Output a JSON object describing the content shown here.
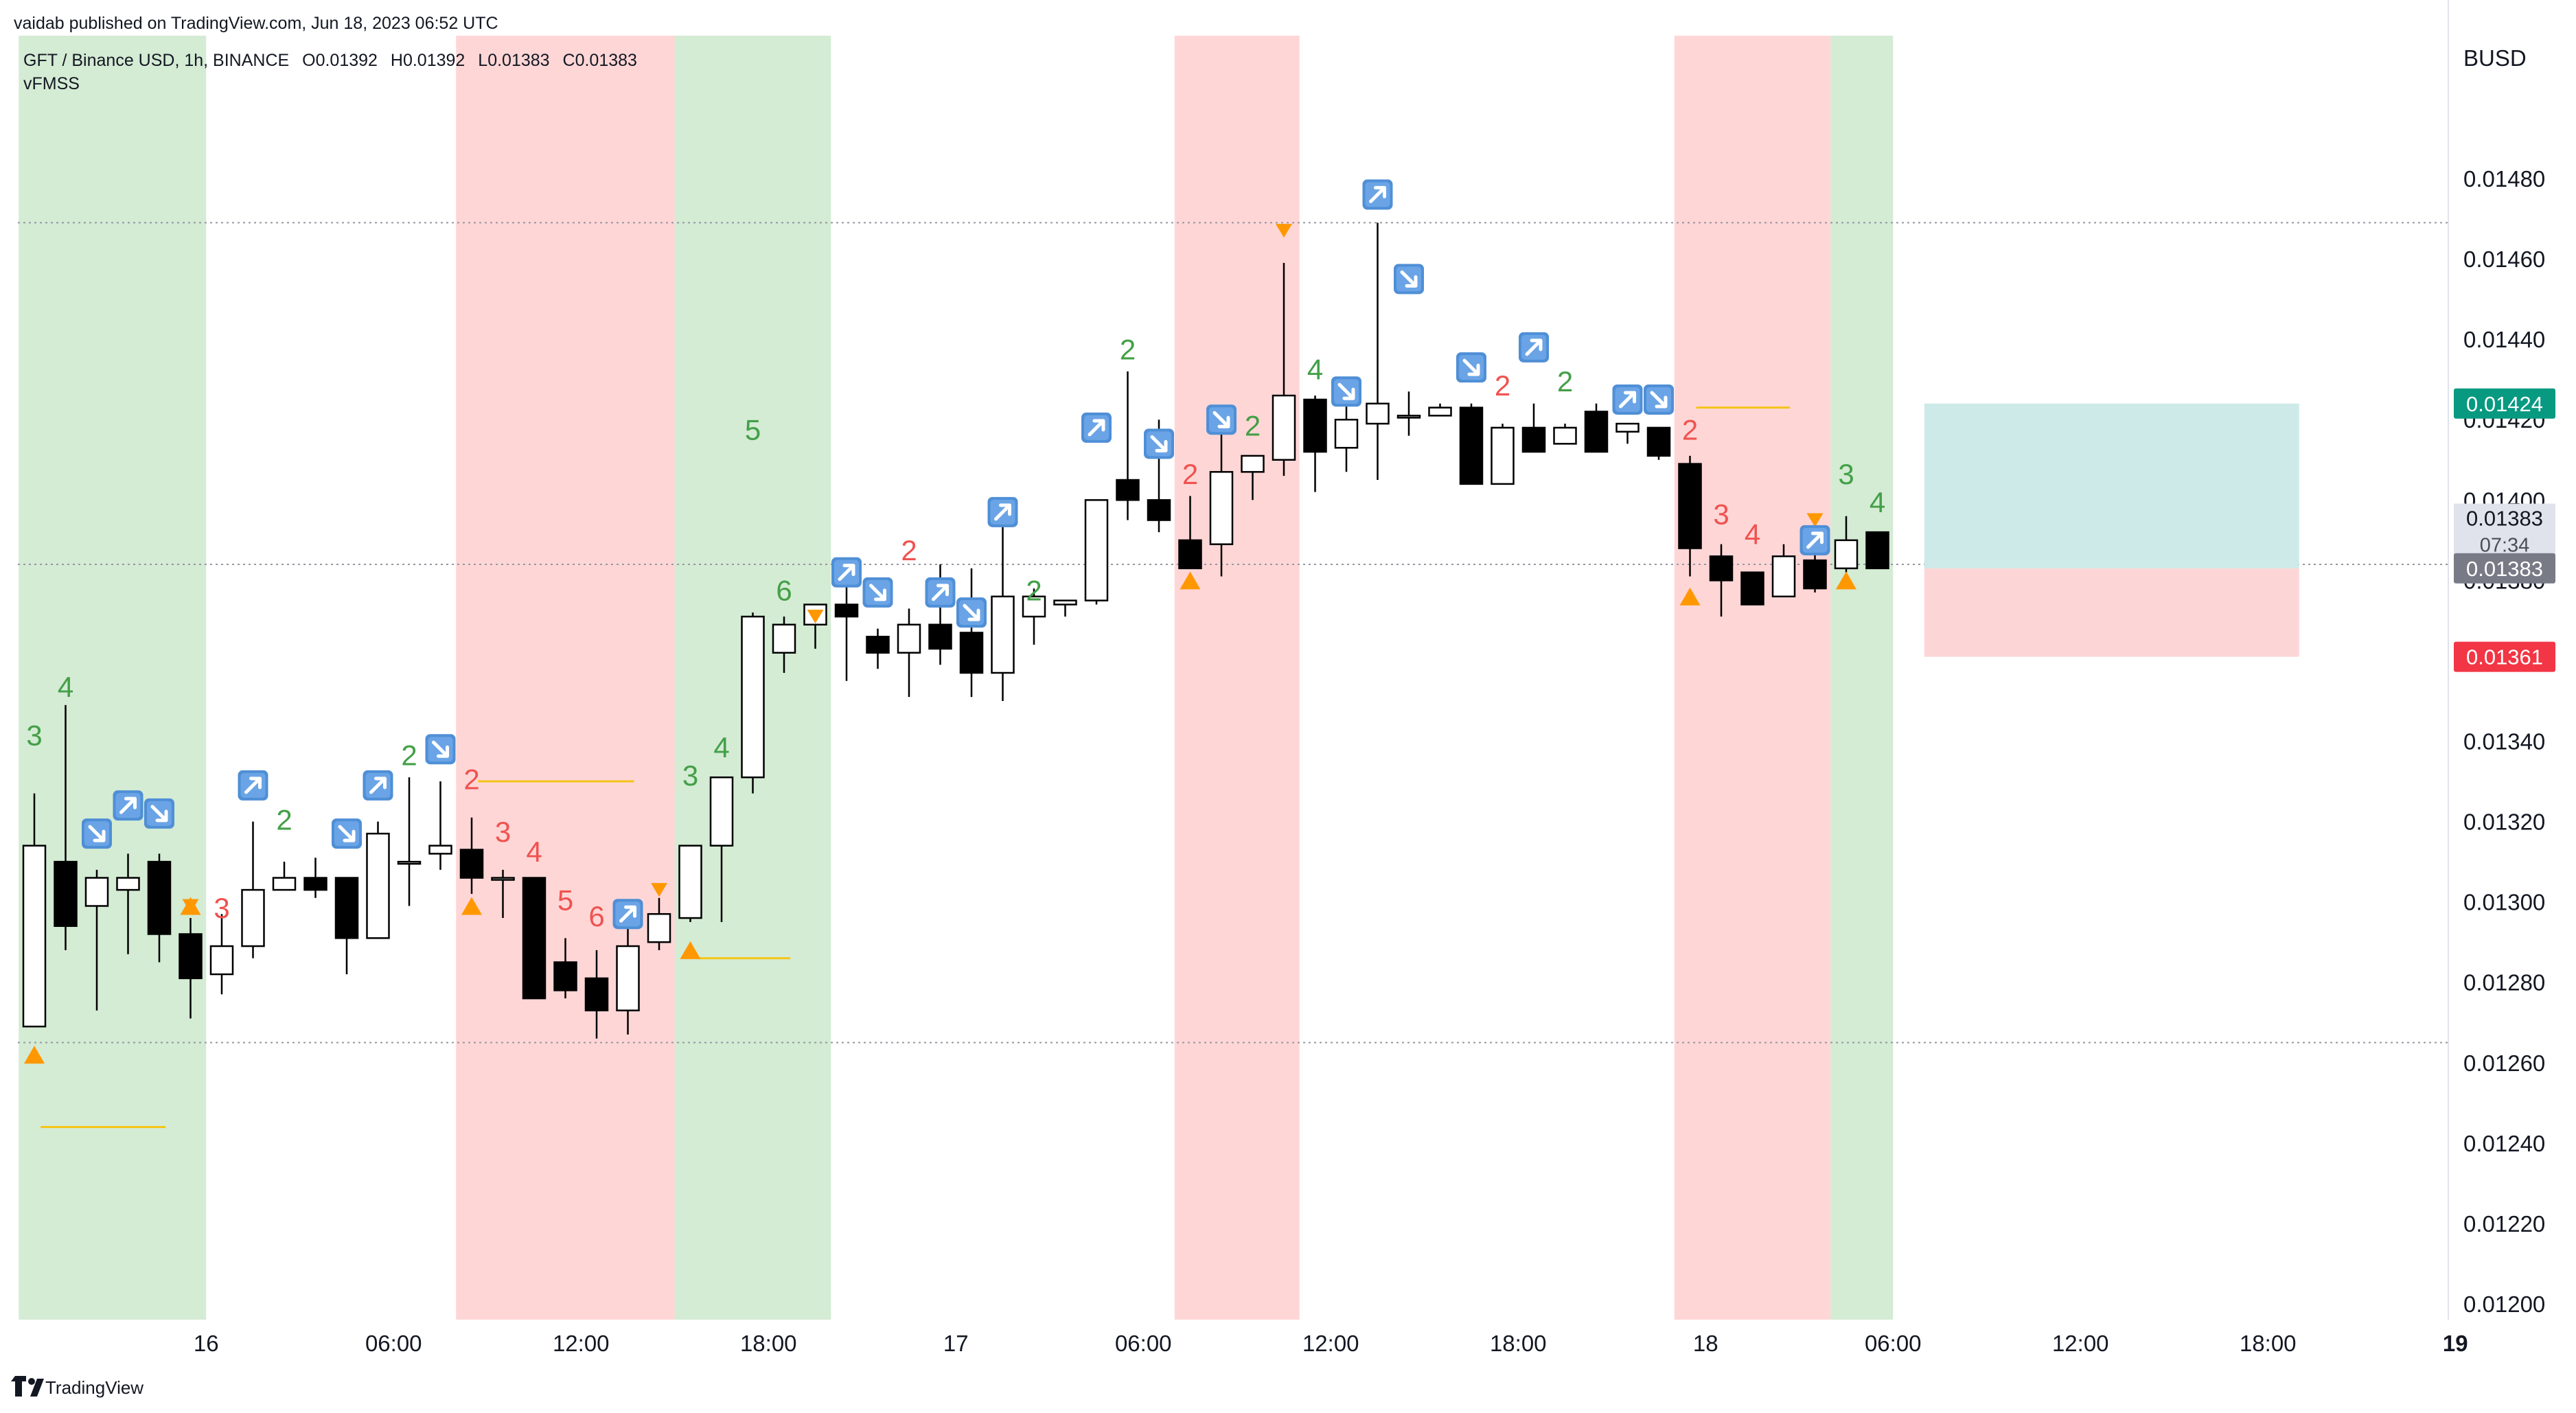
{
  "header": {
    "published": "vaidab published on TradingView.com, Jun 18, 2023 06:52 UTC"
  },
  "legend": {
    "symbol": "GFT / Binance USD, 1h, BINANCE",
    "open": "O0.01392",
    "high": "H0.01392",
    "low": "L0.01383",
    "close": "C0.01383",
    "indicator": "vFMSS"
  },
  "footer": {
    "brand": "TradingView"
  },
  "colors": {
    "up_fill": "#ffffff",
    "down_fill": "#000000",
    "candle_border": "#000000",
    "green_zone": "#d4ebd4",
    "red_zone": "#ffd6d6",
    "count_green": "#43a047",
    "count_red": "#ef5350",
    "triangle": "#ff9800",
    "level_line": "#f5c518",
    "target_box": "#cdeae8",
    "stop_box": "#fcd6d6",
    "price_green_tag": "#089981",
    "price_red_tag": "#f23645",
    "price_gray_tag": "#787b86"
  },
  "chart_data": {
    "type": "candlestick",
    "title": "GFT / Binance USD, 1h, BINANCE",
    "ylabel": "BUSD",
    "ylim": [
      0.01193,
      0.01496
    ],
    "y_ticks": [
      "0.01480",
      "0.01460",
      "0.01440",
      "0.01420",
      "0.01400",
      "0.01380",
      "0.01360",
      "0.01340",
      "0.01320",
      "0.01300",
      "0.01280",
      "0.01260",
      "0.01240",
      "0.01220",
      "0.01200"
    ],
    "x_ticks": [
      {
        "label": "16",
        "index": 5.5
      },
      {
        "label": "06:00",
        "index": 11.5
      },
      {
        "label": "12:00",
        "index": 17.5
      },
      {
        "label": "18:00",
        "index": 23.5
      },
      {
        "label": "17",
        "index": 29.5
      },
      {
        "label": "06:00",
        "index": 35.5
      },
      {
        "label": "12:00",
        "index": 41.5
      },
      {
        "label": "18:00",
        "index": 47.5
      },
      {
        "label": "18",
        "index": 53.5
      },
      {
        "label": "06:00",
        "index": 59.5
      },
      {
        "label": "12:00",
        "index": 65.5
      },
      {
        "label": "18:00",
        "index": 71.5
      },
      {
        "label": "19",
        "index": 77.5
      }
    ],
    "candles": [
      {
        "o": 0.01269,
        "h": 0.01327,
        "l": 0.01269,
        "c": 0.01314
      },
      {
        "o": 0.0131,
        "h": 0.01349,
        "l": 0.01288,
        "c": 0.01294
      },
      {
        "o": 0.01299,
        "h": 0.01308,
        "l": 0.01273,
        "c": 0.01306
      },
      {
        "o": 0.01303,
        "h": 0.01312,
        "l": 0.01287,
        "c": 0.01306
      },
      {
        "o": 0.0131,
        "h": 0.01312,
        "l": 0.01285,
        "c": 0.01292
      },
      {
        "o": 0.01292,
        "h": 0.01296,
        "l": 0.01271,
        "c": 0.01281
      },
      {
        "o": 0.01282,
        "h": 0.01297,
        "l": 0.01277,
        "c": 0.01289
      },
      {
        "o": 0.01289,
        "h": 0.0132,
        "l": 0.01286,
        "c": 0.01303
      },
      {
        "o": 0.01303,
        "h": 0.0131,
        "l": 0.01303,
        "c": 0.01306
      },
      {
        "o": 0.01306,
        "h": 0.01311,
        "l": 0.01301,
        "c": 0.01303
      },
      {
        "o": 0.01306,
        "h": 0.01306,
        "l": 0.01282,
        "c": 0.01291
      },
      {
        "o": 0.01291,
        "h": 0.0132,
        "l": 0.01291,
        "c": 0.01317
      },
      {
        "o": 0.0131,
        "h": 0.01331,
        "l": 0.01299,
        "c": 0.0131
      },
      {
        "o": 0.01312,
        "h": 0.0133,
        "l": 0.01308,
        "c": 0.01314
      },
      {
        "o": 0.01313,
        "h": 0.01321,
        "l": 0.01302,
        "c": 0.01306
      },
      {
        "o": 0.01306,
        "h": 0.01308,
        "l": 0.01296,
        "c": 0.01306
      },
      {
        "o": 0.01306,
        "h": 0.01306,
        "l": 0.01276,
        "c": 0.01276
      },
      {
        "o": 0.01285,
        "h": 0.01291,
        "l": 0.01276,
        "c": 0.01278
      },
      {
        "o": 0.01281,
        "h": 0.01288,
        "l": 0.01266,
        "c": 0.01273
      },
      {
        "o": 0.01273,
        "h": 0.01296,
        "l": 0.01267,
        "c": 0.01289
      },
      {
        "o": 0.0129,
        "h": 0.01301,
        "l": 0.01288,
        "c": 0.01297
      },
      {
        "o": 0.01296,
        "h": 0.01313,
        "l": 0.01295,
        "c": 0.01314
      },
      {
        "o": 0.01314,
        "h": 0.01329,
        "l": 0.01295,
        "c": 0.01331
      },
      {
        "o": 0.01331,
        "h": 0.01372,
        "l": 0.01327,
        "c": 0.01371
      },
      {
        "o": 0.01362,
        "h": 0.01371,
        "l": 0.01357,
        "c": 0.01369
      },
      {
        "o": 0.01369,
        "h": 0.01373,
        "l": 0.01363,
        "c": 0.01374
      },
      {
        "o": 0.01374,
        "h": 0.01382,
        "l": 0.01355,
        "c": 0.01371
      },
      {
        "o": 0.01366,
        "h": 0.01368,
        "l": 0.01358,
        "c": 0.01362
      },
      {
        "o": 0.01362,
        "h": 0.01373,
        "l": 0.01351,
        "c": 0.01369
      },
      {
        "o": 0.01369,
        "h": 0.01384,
        "l": 0.01359,
        "c": 0.01363
      },
      {
        "o": 0.01367,
        "h": 0.01383,
        "l": 0.01351,
        "c": 0.01357
      },
      {
        "o": 0.01357,
        "h": 0.01395,
        "l": 0.0135,
        "c": 0.01376
      },
      {
        "o": 0.01371,
        "h": 0.01378,
        "l": 0.01364,
        "c": 0.01376
      },
      {
        "o": 0.01374,
        "h": 0.01375,
        "l": 0.01371,
        "c": 0.01375
      },
      {
        "o": 0.01375,
        "h": 0.014,
        "l": 0.01374,
        "c": 0.014
      },
      {
        "o": 0.01405,
        "h": 0.01432,
        "l": 0.01395,
        "c": 0.014
      },
      {
        "o": 0.014,
        "h": 0.0142,
        "l": 0.01392,
        "c": 0.01395
      },
      {
        "o": 0.0139,
        "h": 0.01401,
        "l": 0.01383,
        "c": 0.01383
      },
      {
        "o": 0.01389,
        "h": 0.01417,
        "l": 0.01381,
        "c": 0.01407
      },
      {
        "o": 0.01407,
        "h": 0.01408,
        "l": 0.014,
        "c": 0.01411
      },
      {
        "o": 0.0141,
        "h": 0.01459,
        "l": 0.01406,
        "c": 0.01426
      },
      {
        "o": 0.01425,
        "h": 0.01426,
        "l": 0.01402,
        "c": 0.01412
      },
      {
        "o": 0.01413,
        "h": 0.01427,
        "l": 0.01407,
        "c": 0.0142
      },
      {
        "o": 0.01419,
        "h": 0.01469,
        "l": 0.01405,
        "c": 0.01424
      },
      {
        "o": 0.01421,
        "h": 0.01427,
        "l": 0.01416,
        "c": 0.01421
      },
      {
        "o": 0.01421,
        "h": 0.01424,
        "l": 0.01421,
        "c": 0.01423
      },
      {
        "o": 0.01423,
        "h": 0.01424,
        "l": 0.01404,
        "c": 0.01404
      },
      {
        "o": 0.01404,
        "h": 0.01419,
        "l": 0.01404,
        "c": 0.01418
      },
      {
        "o": 0.01418,
        "h": 0.01424,
        "l": 0.01412,
        "c": 0.01412
      },
      {
        "o": 0.01414,
        "h": 0.01419,
        "l": 0.01414,
        "c": 0.01418
      },
      {
        "o": 0.01422,
        "h": 0.01424,
        "l": 0.01412,
        "c": 0.01412
      },
      {
        "o": 0.01417,
        "h": 0.01419,
        "l": 0.01414,
        "c": 0.01419
      },
      {
        "o": 0.01418,
        "h": 0.01418,
        "l": 0.0141,
        "c": 0.01411
      },
      {
        "o": 0.01409,
        "h": 0.01411,
        "l": 0.01381,
        "c": 0.01388
      },
      {
        "o": 0.01386,
        "h": 0.01389,
        "l": 0.01371,
        "c": 0.0138
      },
      {
        "o": 0.01382,
        "h": 0.01382,
        "l": 0.01374,
        "c": 0.01374
      },
      {
        "o": 0.01376,
        "h": 0.01389,
        "l": 0.01376,
        "c": 0.01386
      },
      {
        "o": 0.01385,
        "h": 0.01388,
        "l": 0.01377,
        "c": 0.01378
      },
      {
        "o": 0.01383,
        "h": 0.01396,
        "l": 0.01382,
        "c": 0.0139
      },
      {
        "o": 0.01392,
        "h": 0.01392,
        "l": 0.01383,
        "c": 0.01383
      }
    ],
    "shaded_zones": [
      {
        "type": "green",
        "from": -0.5,
        "to": 5.5
      },
      {
        "type": "red",
        "from": 13.5,
        "to": 20.5
      },
      {
        "type": "green",
        "from": 20.5,
        "to": 25.5
      },
      {
        "type": "red",
        "from": 36.5,
        "to": 40.5
      },
      {
        "type": "red",
        "from": 52.5,
        "to": 57.5
      },
      {
        "type": "green",
        "from": 57.5,
        "to": 59.5
      }
    ],
    "count_labels": [
      {
        "i": 0,
        "text": "3",
        "color": "green",
        "price": 0.01339
      },
      {
        "i": 1,
        "text": "4",
        "color": "green",
        "price": 0.01351
      },
      {
        "i": 6,
        "text": "3",
        "color": "red",
        "price": 0.01296
      },
      {
        "i": 8,
        "text": "2",
        "color": "green",
        "price": 0.01318
      },
      {
        "i": 12,
        "text": "2",
        "color": "green",
        "price": 0.01334
      },
      {
        "i": 14,
        "text": "2",
        "color": "red",
        "price": 0.01328
      },
      {
        "i": 15,
        "text": "3",
        "color": "red",
        "price": 0.01315
      },
      {
        "i": 16,
        "text": "4",
        "color": "red",
        "price": 0.0131
      },
      {
        "i": 17,
        "text": "5",
        "color": "red",
        "price": 0.01298
      },
      {
        "i": 18,
        "text": "6",
        "color": "red",
        "price": 0.01294
      },
      {
        "i": 21,
        "text": "3",
        "color": "green",
        "price": 0.01329
      },
      {
        "i": 22,
        "text": "4",
        "color": "green",
        "price": 0.01336
      },
      {
        "i": 23,
        "text": "5",
        "color": "green",
        "price": 0.01415
      },
      {
        "i": 24,
        "text": "6",
        "color": "green",
        "price": 0.01375
      },
      {
        "i": 28,
        "text": "2",
        "color": "red",
        "price": 0.01385
      },
      {
        "i": 32,
        "text": "2",
        "color": "green",
        "price": 0.01375
      },
      {
        "i": 35,
        "text": "2",
        "color": "green",
        "price": 0.01435
      },
      {
        "i": 37,
        "text": "2",
        "color": "red",
        "price": 0.01404
      },
      {
        "i": 39,
        "text": "2",
        "color": "green",
        "price": 0.01416
      },
      {
        "i": 41,
        "text": "4",
        "color": "green",
        "price": 0.0143
      },
      {
        "i": 47,
        "text": "2",
        "color": "red",
        "price": 0.01426
      },
      {
        "i": 49,
        "text": "2",
        "color": "green",
        "price": 0.01427
      },
      {
        "i": 53,
        "text": "2",
        "color": "red",
        "price": 0.01415
      },
      {
        "i": 54,
        "text": "3",
        "color": "red",
        "price": 0.01394
      },
      {
        "i": 55,
        "text": "4",
        "color": "red",
        "price": 0.01389
      },
      {
        "i": 58,
        "text": "3",
        "color": "green",
        "price": 0.01404
      },
      {
        "i": 59,
        "text": "4",
        "color": "green",
        "price": 0.01397
      }
    ],
    "arrow_icons": [
      {
        "i": 2,
        "dir": "down",
        "price": 0.01317
      },
      {
        "i": 3,
        "dir": "up",
        "price": 0.01324
      },
      {
        "i": 4,
        "dir": "down",
        "price": 0.01322
      },
      {
        "i": 7,
        "dir": "up",
        "price": 0.01329
      },
      {
        "i": 10,
        "dir": "down",
        "price": 0.01317
      },
      {
        "i": 11,
        "dir": "up",
        "price": 0.01329
      },
      {
        "i": 13,
        "dir": "down",
        "price": 0.01338
      },
      {
        "i": 19,
        "dir": "up",
        "price": 0.01297
      },
      {
        "i": 26,
        "dir": "up",
        "price": 0.01382
      },
      {
        "i": 27,
        "dir": "down",
        "price": 0.01377
      },
      {
        "i": 29,
        "dir": "up",
        "price": 0.01377
      },
      {
        "i": 30,
        "dir": "down",
        "price": 0.01372
      },
      {
        "i": 31,
        "dir": "up",
        "price": 0.01397
      },
      {
        "i": 34,
        "dir": "up",
        "price": 0.01418
      },
      {
        "i": 36,
        "dir": "down",
        "price": 0.01414
      },
      {
        "i": 38,
        "dir": "down",
        "price": 0.0142
      },
      {
        "i": 42,
        "dir": "down",
        "price": 0.01427
      },
      {
        "i": 43,
        "dir": "up",
        "price": 0.01476
      },
      {
        "i": 44,
        "dir": "down",
        "price": 0.01455
      },
      {
        "i": 46,
        "dir": "down",
        "price": 0.01433
      },
      {
        "i": 48,
        "dir": "up",
        "price": 0.01438
      },
      {
        "i": 51,
        "dir": "up",
        "price": 0.01425
      },
      {
        "i": 52,
        "dir": "down",
        "price": 0.01425
      },
      {
        "i": 57,
        "dir": "up",
        "price": 0.0139
      }
    ],
    "triangles": [
      {
        "i": 0,
        "price": 0.01262
      },
      {
        "i": 5,
        "price": 0.01299
      },
      {
        "i": 14,
        "price": 0.01299
      },
      {
        "i": 21,
        "price": 0.01288
      },
      {
        "i": 37,
        "price": 0.0138
      },
      {
        "i": 53,
        "price": 0.01376
      },
      {
        "i": 58,
        "price": 0.0138
      }
    ],
    "small_markers": [
      {
        "i": 5,
        "price": 0.01299
      },
      {
        "i": 20,
        "price": 0.01303
      },
      {
        "i": 25,
        "price": 0.01371
      },
      {
        "i": 40,
        "price": 0.01467
      },
      {
        "i": 57,
        "price": 0.01395
      }
    ],
    "level_lines": [
      {
        "from": 0.2,
        "to": 4.2,
        "price": 0.01244
      },
      {
        "from": 14.2,
        "to": 19.2,
        "price": 0.0133
      },
      {
        "from": 21.2,
        "to": 24.2,
        "price": 0.01286
      },
      {
        "from": 53.2,
        "to": 56.2,
        "price": 0.01423
      }
    ],
    "dotted_lines": [
      0.01469,
      0.01384,
      0.01265
    ],
    "position_box": {
      "from": 60.5,
      "to": 72.5,
      "entry": 0.01383,
      "target": 0.01424,
      "stop": 0.01361
    },
    "price_tags": [
      {
        "value": "0.01424",
        "price": 0.01424,
        "color": "#089981",
        "text_color": "#ffffff"
      },
      {
        "value": "0.01383",
        "price": 0.01395,
        "color": "#e0e3eb",
        "text_color": "#131722",
        "sub": "07:34"
      },
      {
        "value": "0.01383",
        "price": 0.01383,
        "color": "#787b86",
        "text_color": "#ffffff"
      },
      {
        "value": "0.01361",
        "price": 0.01361,
        "color": "#f23645",
        "text_color": "#ffffff"
      }
    ]
  }
}
